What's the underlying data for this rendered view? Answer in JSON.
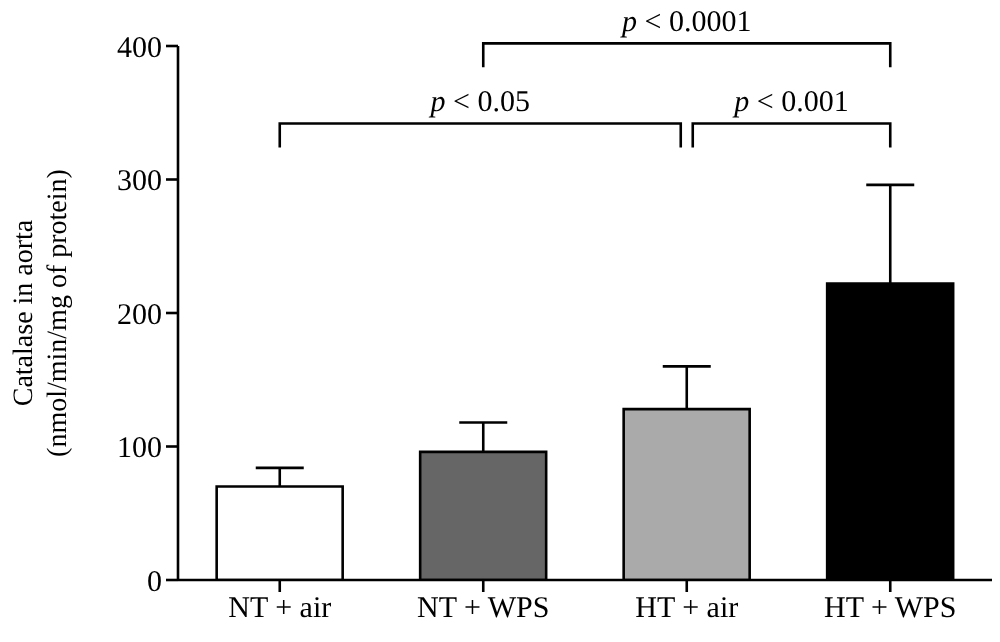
{
  "chart_data": {
    "type": "bar",
    "ylabel": "Catalase in aorta\n(nmol/min/mg of protein)",
    "categories": [
      "NT + air",
      "NT + WPS",
      "HT + air",
      "HT + WPS"
    ],
    "values": [
      70,
      96,
      128,
      222
    ],
    "colors": [
      "#ffffff",
      "#666666",
      "#aaaaaa",
      "#000000"
    ],
    "errors": [
      [
        70,
        84
      ],
      [
        96,
        118
      ],
      [
        128,
        160
      ],
      [
        222,
        296
      ]
    ],
    "ylim": [
      0,
      400
    ],
    "yticks": [
      0,
      100,
      200,
      300,
      400
    ],
    "annotations": [
      "p < 0.05",
      "p < 0.001",
      "p < 0.0001"
    ]
  }
}
